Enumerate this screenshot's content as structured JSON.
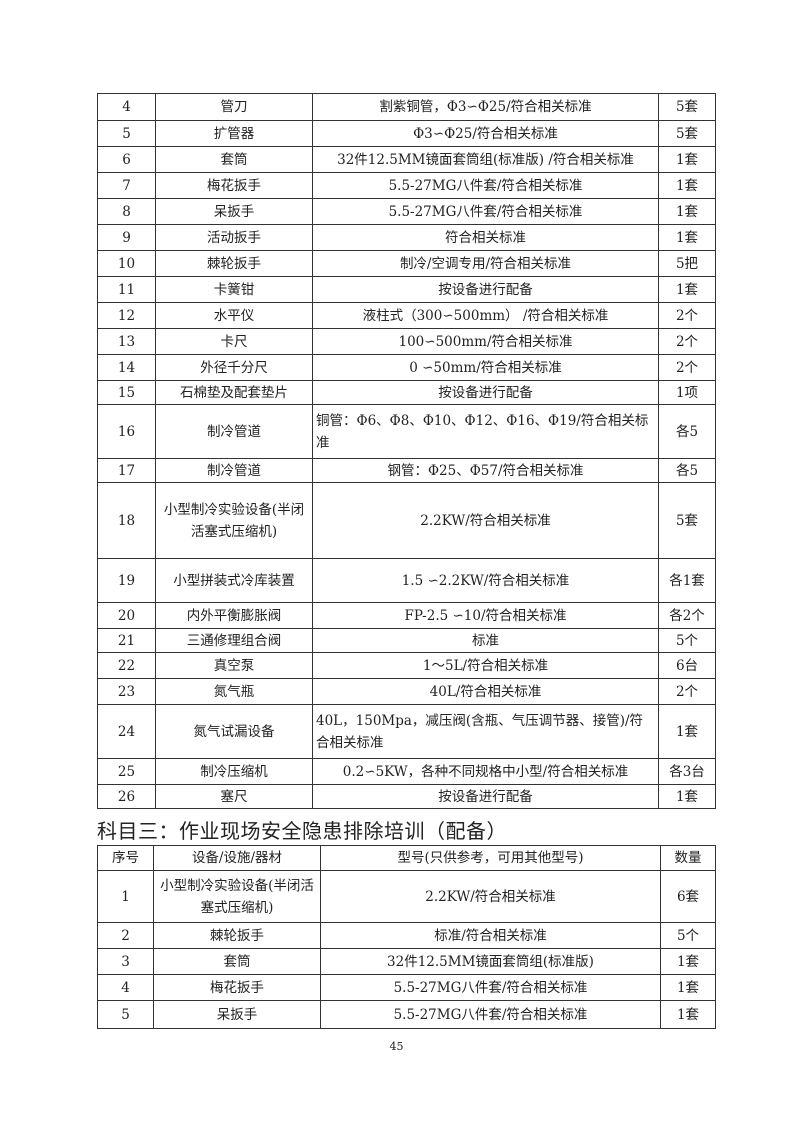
{
  "table1": {
    "rows": [
      {
        "no": "4",
        "name": "管刀",
        "spec": "割紫铜管，Φ3∽Φ25/符合相关标准",
        "qty": "5套"
      },
      {
        "no": "5",
        "name": "扩管器",
        "spec": "Φ3∽Φ25/符合相关标准",
        "qty": "5套"
      },
      {
        "no": "6",
        "name": "套筒",
        "spec": "32件12.5MM镜面套筒组(标准版) /符合相关标准",
        "qty": "1套"
      },
      {
        "no": "7",
        "name": "梅花扳手",
        "spec": "5.5-27MG八件套/符合相关标准",
        "qty": "1套"
      },
      {
        "no": "8",
        "name": "呆扳手",
        "spec": "5.5-27MG八件套/符合相关标准",
        "qty": "1套"
      },
      {
        "no": "9",
        "name": "活动扳手",
        "spec": "符合相关标准",
        "qty": "1套"
      },
      {
        "no": "10",
        "name": "棘轮扳手",
        "spec": "制冷/空调专用/符合相关标准",
        "qty": "5把"
      },
      {
        "no": "11",
        "name": "卡簧钳",
        "spec": "按设备进行配备",
        "qty": "1套"
      },
      {
        "no": "12",
        "name": "水平仪",
        "spec": "液柱式（300∽500mm） /符合相关标准",
        "qty": "2个"
      },
      {
        "no": "13",
        "name": "卡尺",
        "spec": "100∽500mm/符合相关标准",
        "qty": "2个"
      },
      {
        "no": "14",
        "name": "外径千分尺",
        "spec": "0 ∽50mm/符合相关标准",
        "qty": "2个"
      },
      {
        "no": "15",
        "name": "石棉垫及配套垫片",
        "spec": "按设备进行配备",
        "qty": "1项"
      },
      {
        "no": "16",
        "name": "制冷管道",
        "spec": "铜管：Φ6、Φ8、Φ10、Φ12、Φ16、Φ19/符合相关标准",
        "qty": "各5"
      },
      {
        "no": "17",
        "name": "制冷管道",
        "spec": "钢管：Φ25、Φ57/符合相关标准",
        "qty": "各5"
      },
      {
        "no": "18",
        "name": "小型制冷实验设备(半闭活塞式压缩机)",
        "spec": "2.2KW/符合相关标准",
        "qty": "5套"
      },
      {
        "no": "19",
        "name": "小型拼装式冷库装置",
        "spec": "1.5 ∽2.2KW/符合相关标准",
        "qty": "各1套"
      },
      {
        "no": "20",
        "name": "内外平衡膨胀阀",
        "spec": "FP-2.5 ∽10/符合相关标准",
        "qty": "各2个"
      },
      {
        "no": "21",
        "name": "三通修理组合阀",
        "spec": "标准",
        "qty": "5个"
      },
      {
        "no": "22",
        "name": "真空泵",
        "spec": "1～5L/符合相关标准",
        "qty": "6台"
      },
      {
        "no": "23",
        "name": "氮气瓶",
        "spec": "40L/符合相关标准",
        "qty": "2个"
      },
      {
        "no": "24",
        "name": "氮气试漏设备",
        "spec": "40L，150Mpa，减压阀(含瓶、气压调节器、接管)/符合相关标准",
        "qty": "1套"
      },
      {
        "no": "25",
        "name": "制冷压缩机",
        "spec": "0.2∽5KW，各种不同规格中小型/符合相关标准",
        "qty": "各3台"
      },
      {
        "no": "26",
        "name": "塞尺",
        "spec": "按设备进行配备",
        "qty": "1套"
      }
    ]
  },
  "section_heading": "科目三：作业现场安全隐患排除培训（配备）",
  "table2": {
    "headers": {
      "no": "序号",
      "name": "设备/设施/器材",
      "spec": "型号(只供参考，可用其他型号)",
      "qty": "数量"
    },
    "rows": [
      {
        "no": "1",
        "name": "小型制冷实验设备(半闭活塞式压缩机)",
        "spec": "2.2KW/符合相关标准",
        "qty": "6套"
      },
      {
        "no": "2",
        "name": "棘轮扳手",
        "spec": "标准/符合相关标准",
        "qty": "5个"
      },
      {
        "no": "3",
        "name": "套筒",
        "spec": "32件12.5MM镜面套筒组(标准版)",
        "qty": "1套"
      },
      {
        "no": "4",
        "name": "梅花扳手",
        "spec": "5.5-27MG八件套/符合相关标准",
        "qty": "1套"
      },
      {
        "no": "5",
        "name": "呆扳手",
        "spec": "5.5-27MG八件套/符合相关标准",
        "qty": "1套"
      }
    ]
  },
  "page_number": "45"
}
